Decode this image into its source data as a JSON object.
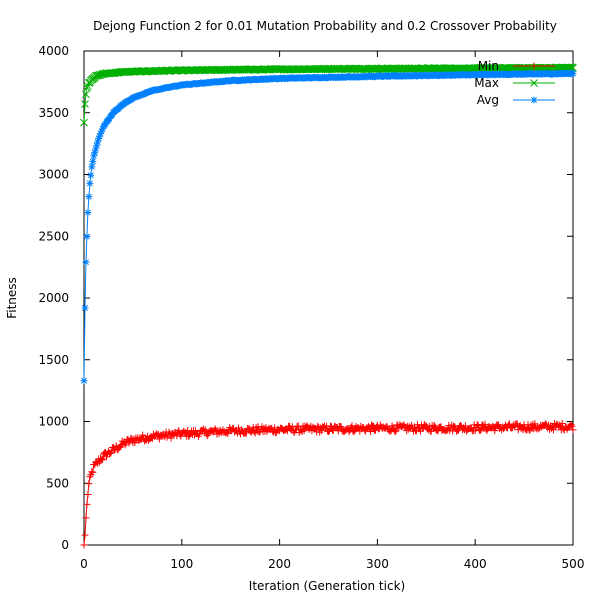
{
  "chart_data": {
    "type": "scatter",
    "title": "Dejong Function 2 for 0.01 Mutation Probability and 0.2 Crossover Probability",
    "xlabel": "Iteration (Generation tick)",
    "ylabel": "Fitness",
    "xlim": [
      0,
      500
    ],
    "ylim": [
      0,
      4000
    ],
    "xticks": [
      0,
      100,
      200,
      300,
      400,
      500
    ],
    "yticks": [
      0,
      500,
      1000,
      1500,
      2000,
      2500,
      3000,
      3500,
      4000
    ],
    "grid": false,
    "legend_position": "top-right",
    "series": [
      {
        "name": "Min",
        "marker": "plus",
        "color": "#ff0000",
        "keypoints": [
          [
            0,
            0
          ],
          [
            1,
            80
          ],
          [
            2,
            220
          ],
          [
            3,
            320
          ],
          [
            4,
            420
          ],
          [
            5,
            490
          ],
          [
            7,
            560
          ],
          [
            10,
            630
          ],
          [
            15,
            680
          ],
          [
            20,
            720
          ],
          [
            30,
            770
          ],
          [
            40,
            820
          ],
          [
            50,
            850
          ],
          [
            70,
            880
          ],
          [
            100,
            900
          ],
          [
            150,
            925
          ],
          [
            200,
            935
          ],
          [
            300,
            945
          ],
          [
            400,
            950
          ],
          [
            500,
            960
          ]
        ],
        "noise": 28
      },
      {
        "name": "Max",
        "marker": "x",
        "color": "#00b000",
        "keypoints": [
          [
            0,
            3420
          ],
          [
            1,
            3570
          ],
          [
            2,
            3650
          ],
          [
            3,
            3700
          ],
          [
            5,
            3740
          ],
          [
            8,
            3770
          ],
          [
            12,
            3795
          ],
          [
            20,
            3815
          ],
          [
            40,
            3830
          ],
          [
            80,
            3840
          ],
          [
            150,
            3848
          ],
          [
            250,
            3855
          ],
          [
            400,
            3860
          ],
          [
            500,
            3865
          ]
        ],
        "noise": 4
      },
      {
        "name": "Avg",
        "marker": "star",
        "color": "#0080ff",
        "keypoints": [
          [
            0,
            1330
          ],
          [
            1,
            1920
          ],
          [
            2,
            2290
          ],
          [
            3,
            2500
          ],
          [
            4,
            2690
          ],
          [
            5,
            2820
          ],
          [
            6,
            2930
          ],
          [
            8,
            3060
          ],
          [
            10,
            3150
          ],
          [
            15,
            3290
          ],
          [
            20,
            3390
          ],
          [
            30,
            3500
          ],
          [
            40,
            3570
          ],
          [
            50,
            3620
          ],
          [
            70,
            3680
          ],
          [
            100,
            3725
          ],
          [
            150,
            3760
          ],
          [
            200,
            3778
          ],
          [
            300,
            3795
          ],
          [
            400,
            3808
          ],
          [
            500,
            3818
          ]
        ],
        "noise": 3
      }
    ]
  }
}
